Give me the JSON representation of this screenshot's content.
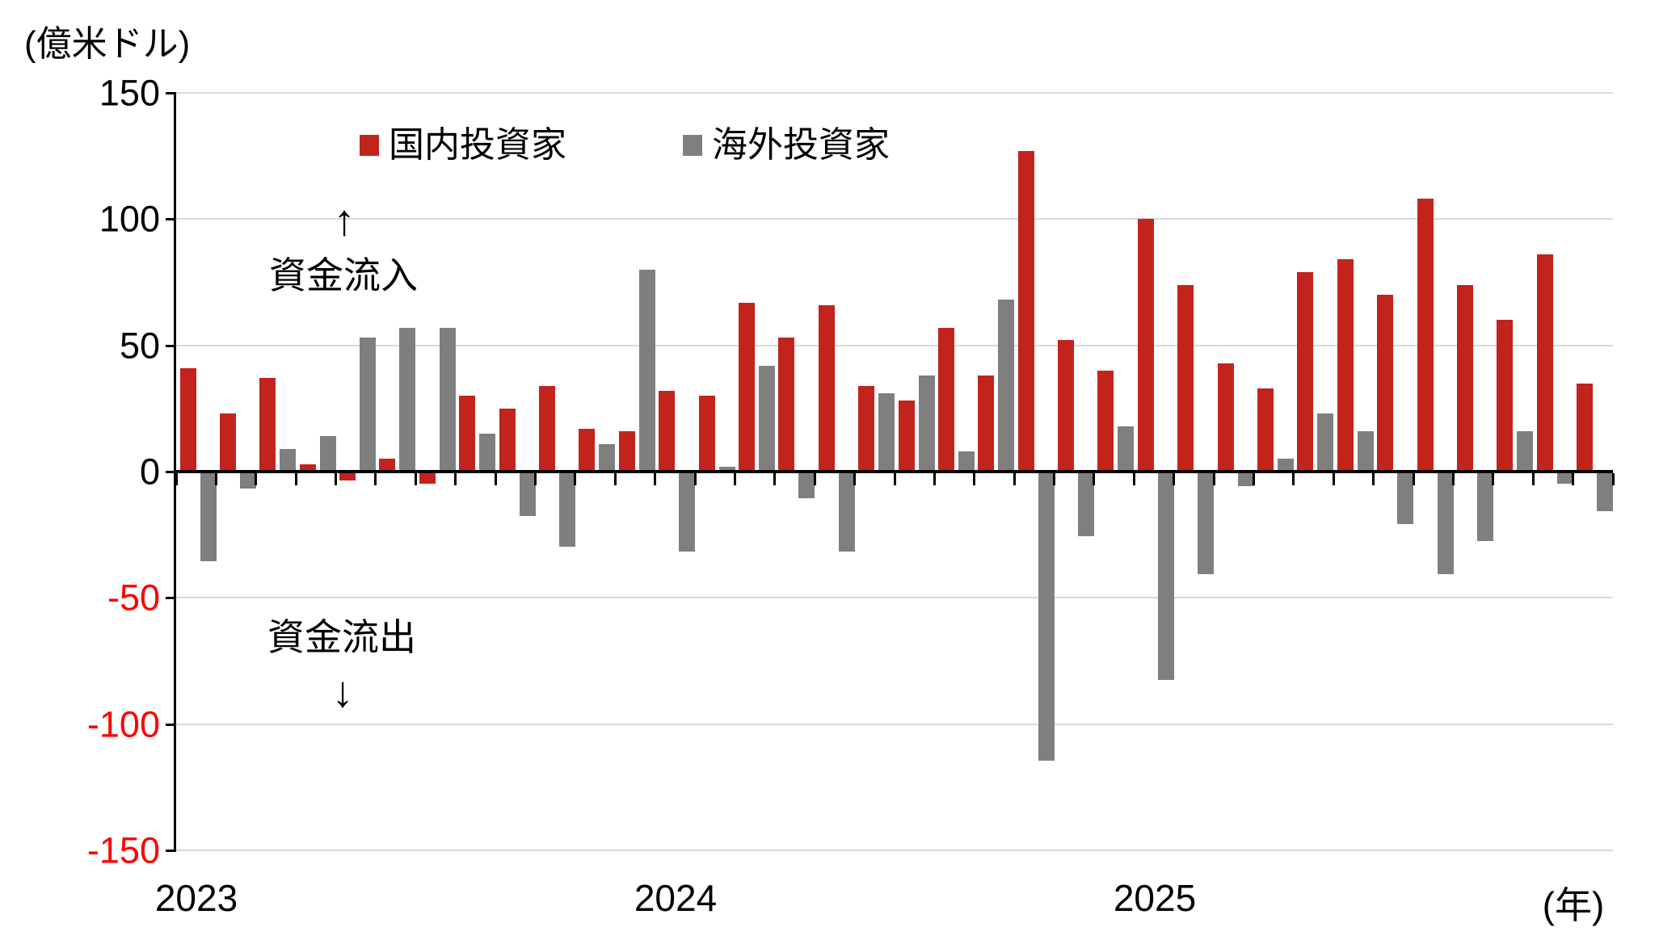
{
  "chart": {
    "unit_label": "(億米ドル)",
    "legend": {
      "domestic": "国内投資家",
      "foreign": "海外投資家"
    },
    "annotations": {
      "inflow_arrow": "↑",
      "inflow_label": "資金流入",
      "outflow_label": "資金流出",
      "outflow_arrow": "↓"
    },
    "x_axis": {
      "years": [
        "2023",
        "2024",
        "2025"
      ],
      "unit_suffix": "(年)"
    }
  },
  "colors": {
    "domestic": "#c2241d",
    "foreign": "#7f7f7f",
    "negative_tick_label": "#ff0000",
    "gridline": "#d9d9d9",
    "axis": "#000000"
  },
  "chart_data": {
    "type": "bar",
    "title": "",
    "ylabel": "(億米ドル)",
    "ylim": [
      -150,
      150
    ],
    "y_ticks": [
      150,
      100,
      50,
      0,
      -50,
      -100,
      -150
    ],
    "grid": true,
    "legend_position": "top-inside",
    "x_year_tick_indices": [
      0,
      12,
      24
    ],
    "categories": [
      "2023-01",
      "2023-02",
      "2023-03",
      "2023-04",
      "2023-05",
      "2023-06",
      "2023-07",
      "2023-08",
      "2023-09",
      "2023-10",
      "2023-11",
      "2023-12",
      "2024-01",
      "2024-02",
      "2024-03",
      "2024-04",
      "2024-05",
      "2024-06",
      "2024-07",
      "2024-08",
      "2024-09",
      "2024-10",
      "2024-11",
      "2024-12",
      "2025-01",
      "2025-02",
      "2025-03",
      "2025-04",
      "2025-05",
      "2025-06",
      "2025-07",
      "2025-08",
      "2025-09",
      "2025-10",
      "2025-11",
      "2025-12"
    ],
    "series": [
      {
        "name": "国内投資家",
        "color": "#c2241d",
        "values": [
          41,
          23,
          37,
          3,
          -3,
          5,
          -4,
          30,
          25,
          34,
          17,
          16,
          32,
          30,
          67,
          53,
          66,
          34,
          28,
          57,
          38,
          127,
          52,
          40,
          100,
          74,
          43,
          33,
          79,
          84,
          70,
          108,
          74,
          60,
          86,
          35
        ]
      },
      {
        "name": "海外投資家",
        "color": "#7f7f7f",
        "values": [
          -35,
          -6,
          9,
          14,
          53,
          57,
          57,
          15,
          -17,
          -29,
          11,
          80,
          -31,
          2,
          42,
          -10,
          -31,
          31,
          38,
          8,
          68,
          -114,
          -25,
          18,
          -82,
          -40,
          -5,
          5,
          23,
          16,
          -20,
          -40,
          -27,
          16,
          -4,
          -15
        ]
      }
    ]
  }
}
